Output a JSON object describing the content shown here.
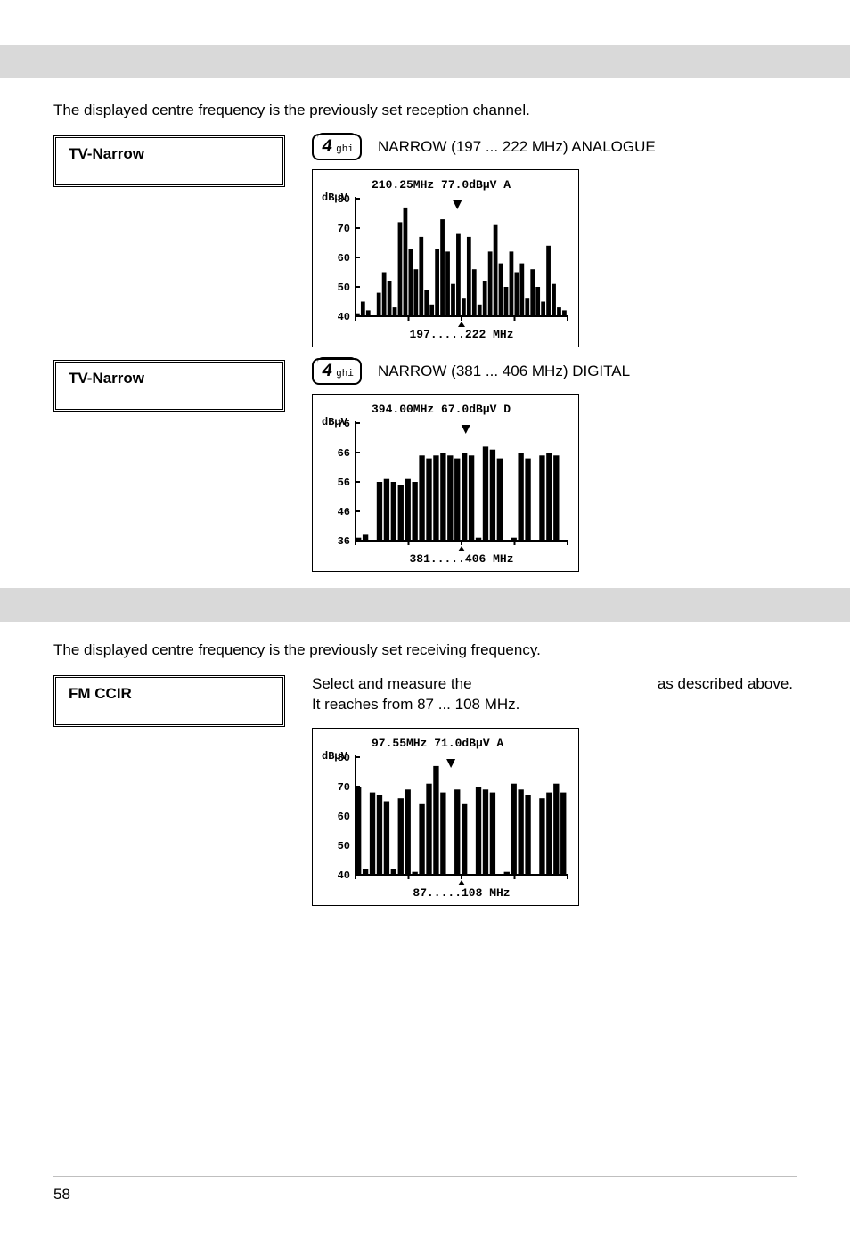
{
  "section_tv": {
    "intro_text": "The displayed centre frequency is the previously set reception channel.",
    "button1_label": "TV-Narrow",
    "key1_big": "4",
    "key1_small": "ghi",
    "narrow1_text": "NARROW (197 ... 222 MHz) ANALOGUE",
    "chart1": {
      "header": "210.25MHz  77.0dBµV A",
      "ylabel": "dBµV",
      "ymin": 40,
      "ymax": 80,
      "yticks": [
        80,
        70,
        60,
        50,
        40
      ],
      "xlabel": "197.....222 MHz",
      "bars": [
        41,
        45,
        42,
        40,
        48,
        55,
        52,
        43,
        72,
        77,
        63,
        56,
        67,
        49,
        44,
        63,
        73,
        62,
        51,
        68,
        46,
        67,
        56,
        44,
        52,
        62,
        71,
        58,
        50,
        62,
        55,
        58,
        46,
        56,
        50,
        45,
        64,
        51,
        43,
        42
      ]
    },
    "button2_label": "TV-Narrow",
    "key2_big": "4",
    "key2_small": "ghi",
    "narrow2_text": "NARROW (381 ... 406 MHz) DIGITAL",
    "chart2": {
      "header": "394.00MHz  67.0dBµV D",
      "ylabel": "dBµV",
      "ymin": 36,
      "ymax": 76,
      "yticks": [
        76,
        66,
        56,
        46,
        36
      ],
      "xlabel": "381.....406 MHz",
      "bars": [
        37,
        38,
        36,
        56,
        57,
        56,
        55,
        57,
        56,
        65,
        64,
        65,
        66,
        65,
        64,
        66,
        65,
        37,
        68,
        67,
        64,
        36,
        37,
        66,
        64,
        36,
        65,
        66,
        65,
        36
      ]
    }
  },
  "section_fm": {
    "intro_text": "The displayed centre frequency is the previously set receiving frequency.",
    "button_label": "FM CCIR",
    "line1_pre": "Select  and  measure  the",
    "line1_post": "as  described  above.",
    "line2": "It reaches from 87 ... 108 MHz.",
    "chart": {
      "header": "97.55MHz  71.0dBµV A",
      "ylabel": "dBµV",
      "ymin": 40,
      "ymax": 80,
      "yticks": [
        80,
        70,
        60,
        50,
        40
      ],
      "xlabel": "87.....108 MHz",
      "bars": [
        70,
        42,
        68,
        67,
        65,
        42,
        66,
        69,
        41,
        64,
        71,
        77,
        68,
        40,
        69,
        64,
        40,
        70,
        69,
        68,
        40,
        41,
        71,
        69,
        67,
        40,
        66,
        68,
        71,
        68
      ]
    }
  },
  "page_number": "58"
}
